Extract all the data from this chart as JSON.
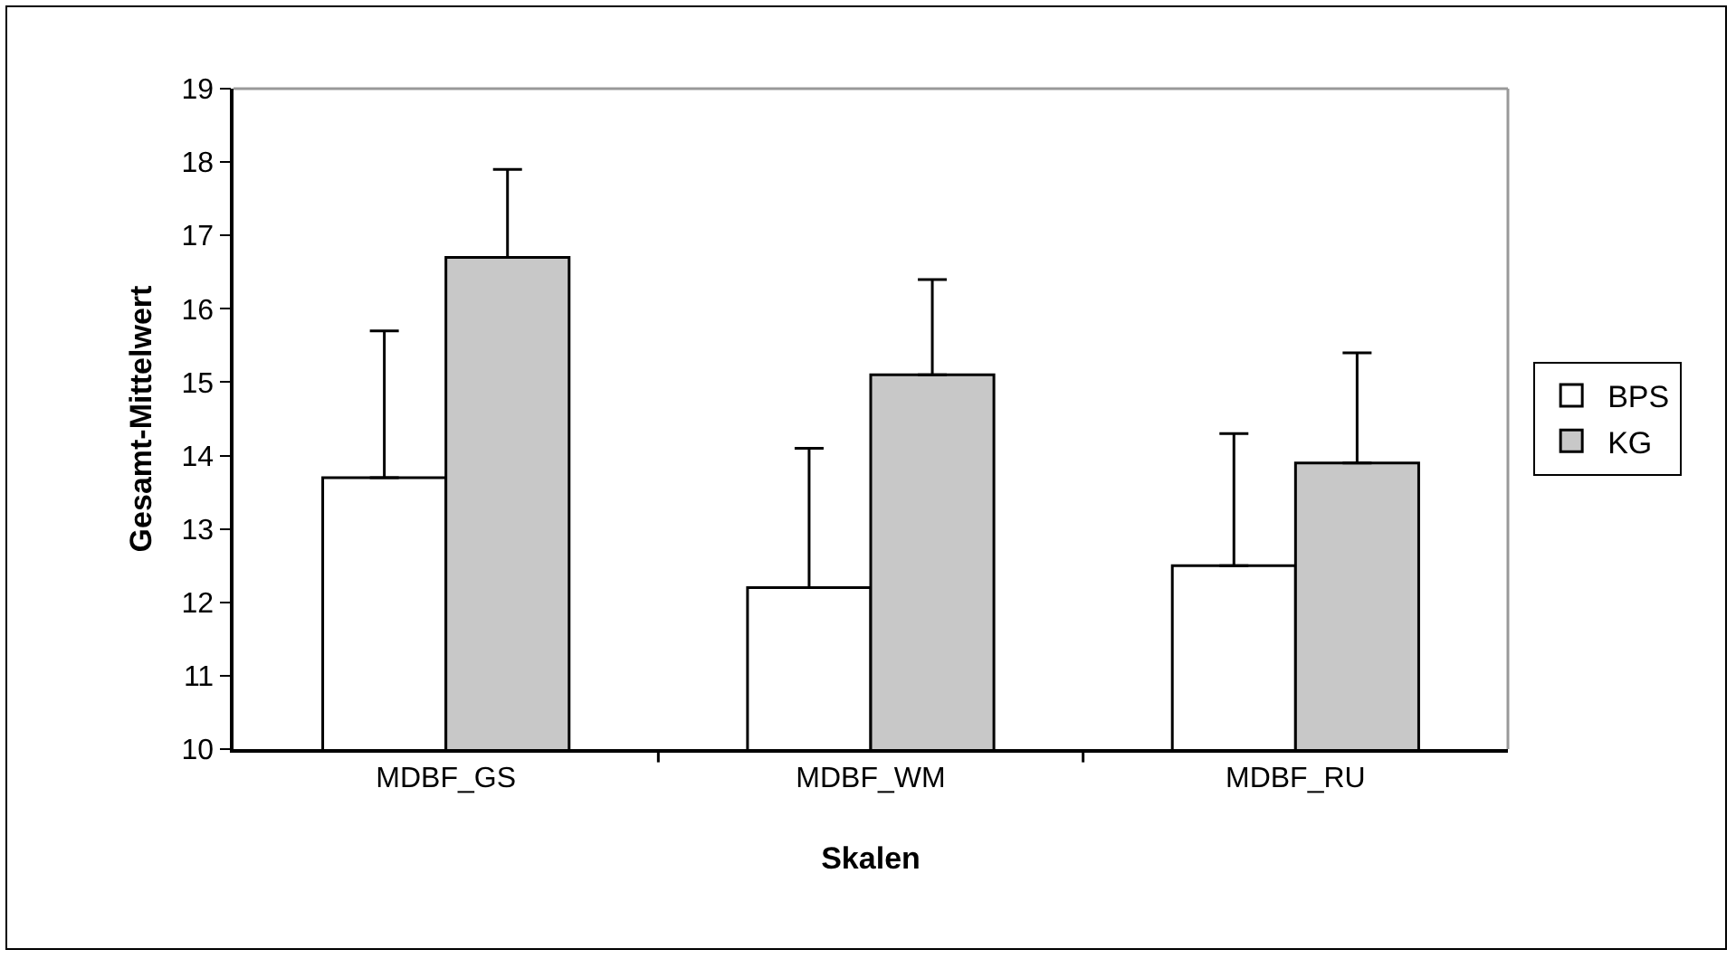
{
  "chart_data": {
    "type": "bar",
    "xlabel": "Skalen",
    "ylabel": "Gesamt-Mittelwert",
    "categories": [
      "MDBF_GS",
      "MDBF_WM",
      "MDBF_RU"
    ],
    "series": [
      {
        "name": "BPS",
        "color": "#ffffff",
        "values": [
          13.7,
          12.2,
          12.5
        ],
        "errors": [
          [
            13.7,
            15.7
          ],
          [
            12.2,
            14.1
          ],
          [
            12.5,
            14.3
          ]
        ]
      },
      {
        "name": "KG",
        "color": "#c8c8c8",
        "values": [
          16.7,
          15.1,
          13.9
        ],
        "errors": [
          [
            16.7,
            17.9
          ],
          [
            15.1,
            16.4
          ],
          [
            13.9,
            15.4
          ]
        ]
      }
    ],
    "ylim": [
      10,
      19
    ],
    "yticks": [
      10,
      11,
      12,
      13,
      14,
      15,
      16,
      17,
      18,
      19
    ],
    "grid": false,
    "legend": "right"
  }
}
